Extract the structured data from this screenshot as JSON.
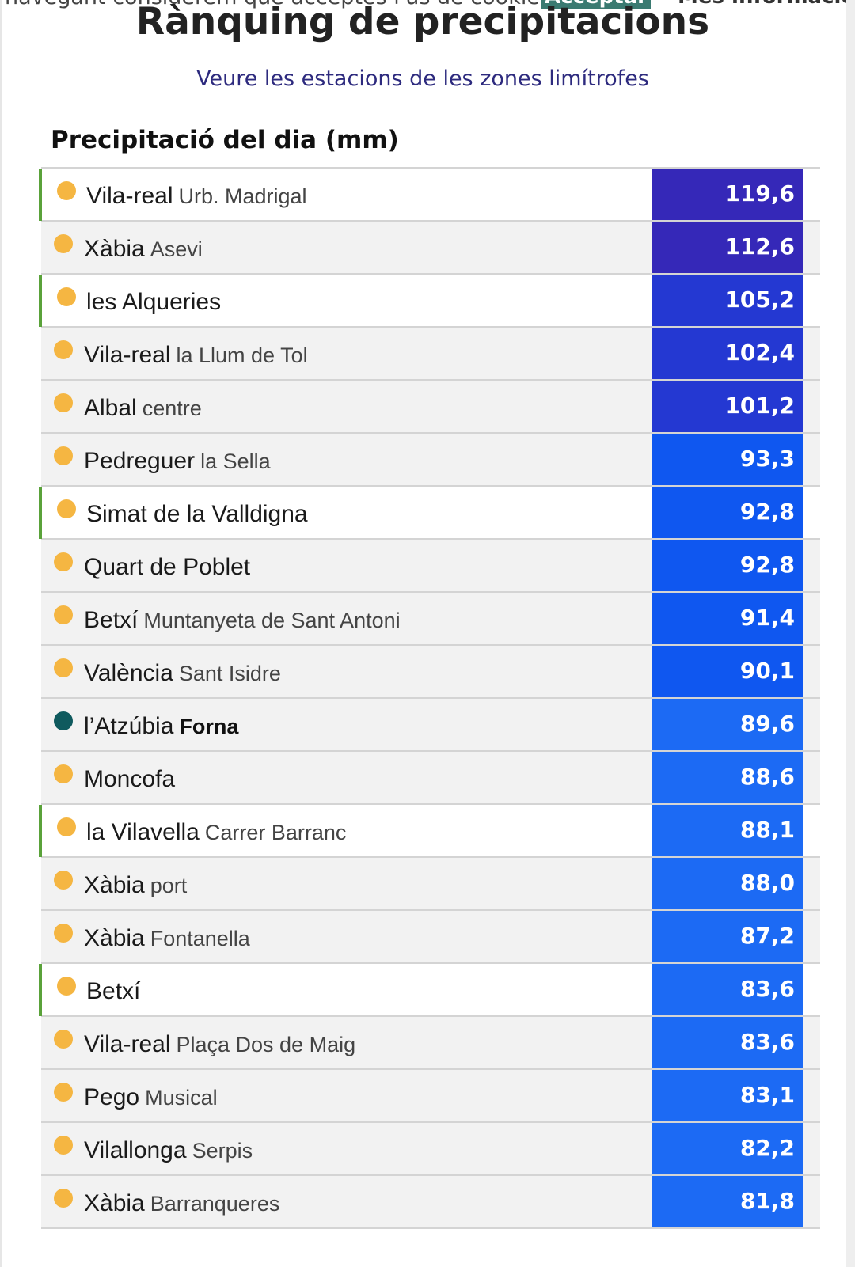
{
  "cookie": {
    "text": "navegant considerem que acceptes l'ús de cookies.",
    "accept_label": "Acceptar",
    "more_label": "Més informació"
  },
  "title": "Rànquing de precipitacions",
  "subtitle_link": "Veure les estacions de les zones limítrofes",
  "section_title": "Precipitació del dia (mm)",
  "colors": {
    "dot_yellow": "#f5b642",
    "dot_teal": "#0f5a5e",
    "highlight_bar": "#5aa23a"
  },
  "rows": [
    {
      "name": "Vila-real",
      "sub": "Urb. Madrigal",
      "value": "119,6",
      "highlight": true,
      "dot": "yellow",
      "color": "#3528b8"
    },
    {
      "name": "Xàbia",
      "sub": "Asevi",
      "value": "112,6",
      "highlight": false,
      "dot": "yellow",
      "color": "#3528b8"
    },
    {
      "name": "les Alqueries",
      "sub": "",
      "value": "105,2",
      "highlight": true,
      "dot": "yellow",
      "color": "#2438d2"
    },
    {
      "name": "Vila-real",
      "sub": "la Llum de Tol",
      "value": "102,4",
      "highlight": false,
      "dot": "yellow",
      "color": "#2438d2"
    },
    {
      "name": "Albal",
      "sub": "centre",
      "value": "101,2",
      "highlight": false,
      "dot": "yellow",
      "color": "#2438d2"
    },
    {
      "name": "Pedreguer",
      "sub": "la Sella",
      "value": "93,3",
      "highlight": false,
      "dot": "yellow",
      "color": "#0f57f0"
    },
    {
      "name": "Simat de la Valldigna",
      "sub": "",
      "value": "92,8",
      "highlight": true,
      "dot": "yellow",
      "color": "#0f57f0"
    },
    {
      "name": "Quart de Poblet",
      "sub": "",
      "value": "92,8",
      "highlight": false,
      "dot": "yellow",
      "color": "#0f57f0"
    },
    {
      "name": "Betxí",
      "sub": "Muntanyeta de Sant Antoni",
      "value": "91,4",
      "highlight": false,
      "dot": "yellow",
      "color": "#0f57f0"
    },
    {
      "name": "València",
      "sub": "Sant Isidre",
      "value": "90,1",
      "highlight": false,
      "dot": "yellow",
      "color": "#0f57f0"
    },
    {
      "name": "l’Atzúbia",
      "sub": "Forna",
      "value": "89,6",
      "highlight": false,
      "dot": "teal",
      "sub_bold": true,
      "color": "#1c6af4"
    },
    {
      "name": "Moncofa",
      "sub": "",
      "value": "88,6",
      "highlight": false,
      "dot": "yellow",
      "color": "#1c6af4"
    },
    {
      "name": "la Vilavella",
      "sub": "Carrer Barranc",
      "value": "88,1",
      "highlight": true,
      "dot": "yellow",
      "color": "#1c6af4"
    },
    {
      "name": "Xàbia",
      "sub": "port",
      "value": "88,0",
      "highlight": false,
      "dot": "yellow",
      "color": "#1c6af4"
    },
    {
      "name": "Xàbia",
      "sub": "Fontanella",
      "value": "87,2",
      "highlight": false,
      "dot": "yellow",
      "color": "#1c6af4"
    },
    {
      "name": "Betxí",
      "sub": "",
      "value": "83,6",
      "highlight": true,
      "dot": "yellow",
      "color": "#1c6af4"
    },
    {
      "name": "Vila-real",
      "sub": "Plaça Dos de Maig",
      "value": "83,6",
      "highlight": false,
      "dot": "yellow",
      "color": "#1c6af4"
    },
    {
      "name": "Pego",
      "sub": "Musical",
      "value": "83,1",
      "highlight": false,
      "dot": "yellow",
      "color": "#1c6af4"
    },
    {
      "name": "Vilallonga",
      "sub": "Serpis",
      "value": "82,2",
      "highlight": false,
      "dot": "yellow",
      "color": "#1c6af4"
    },
    {
      "name": "Xàbia",
      "sub": "Barranqueres",
      "value": "81,8",
      "highlight": false,
      "dot": "yellow",
      "color": "#1c6af4"
    }
  ]
}
